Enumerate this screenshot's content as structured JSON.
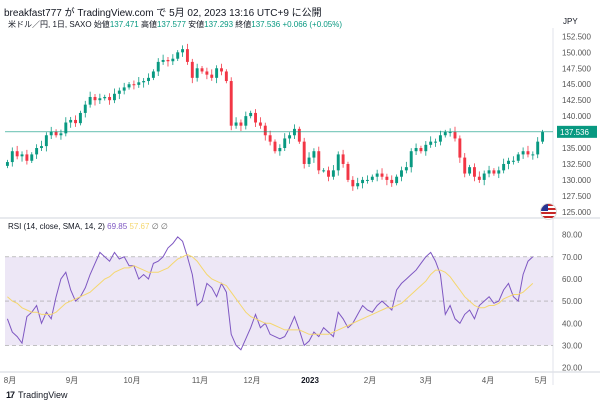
{
  "header": {
    "text": "breakfast777 が TradingView.com で 5月 02, 2023 13:16 UTC+9 に公開"
  },
  "legend": {
    "symbol": "米ドル／円, 1日, SAXO",
    "open_label": "始値",
    "open": "137.471",
    "high_label": "高値",
    "high": "137.577",
    "low_label": "安値",
    "low": "137.293",
    "close_label": "終値",
    "close": "137.536",
    "change": "+0.066 (+0.05%)"
  },
  "currency": "JPY",
  "rsi_legend": {
    "label": "RSI (14, close, SMA, 14, 2)",
    "rsi": "69.85",
    "ma": "57.67",
    "extra": "∅ ∅"
  },
  "footer": {
    "brand": "TradingView",
    "logo": "17"
  },
  "colors": {
    "up": "#089981",
    "down": "#f23645",
    "rsi": "#7e57c2",
    "rsi_ma": "#f5d76e",
    "band": "#ede7f6",
    "last_price": "#089981"
  },
  "chart_data": [
    {
      "type": "candlestick",
      "price_ticks": [
        125,
        127.5,
        130,
        132.5,
        135,
        137.5,
        140,
        142.5,
        145,
        147.5,
        150,
        152.5
      ],
      "price_labels": [
        "125.000",
        "127.500",
        "130.000",
        "132.500",
        "135.000",
        "137.500",
        "140.000",
        "142.500",
        "145.000",
        "147.500",
        "150.000",
        "152.500"
      ],
      "ylim": [
        124.5,
        153.5
      ],
      "last_price": 137.536,
      "last_price_label": "137.536",
      "x_labels": [
        "8月",
        "9月",
        "10月",
        "11月",
        "12月",
        "2023",
        "2月",
        "3月",
        "4月",
        "5月"
      ],
      "close_path": [
        132.8,
        134.5,
        133.7,
        134.0,
        133.0,
        134.0,
        135.0,
        135.3,
        137.0,
        137.6,
        137.0,
        137.3,
        139.0,
        139.4,
        138.9,
        140.5,
        141.8,
        143.0,
        142.5,
        142.8,
        143.0,
        142.5,
        143.5,
        144.0,
        144.5,
        145.0,
        144.9,
        145.3,
        145.5,
        146.0,
        147.0,
        148.5,
        148.8,
        148.6,
        149.0,
        150.0,
        150.5,
        148.5,
        146.0,
        147.5,
        147.0,
        146.5,
        146.0,
        147.5,
        147.0,
        145.5,
        138.5,
        139.0,
        138.5,
        140.0,
        140.5,
        139.0,
        138.5,
        137.0,
        136.0,
        134.5,
        135.0,
        136.5,
        137.0,
        138.0,
        136.0,
        132.5,
        133.5,
        134.5,
        131.5,
        131.5,
        130.5,
        131.5,
        134.0,
        132.5,
        130.0,
        129.0,
        129.5,
        130.0,
        130.0,
        130.5,
        131.0,
        130.5,
        130.0,
        129.5,
        130.5,
        131.5,
        132.0,
        134.5,
        135.0,
        134.5,
        135.5,
        136.0,
        136.0,
        137.0,
        137.5,
        137.5,
        136.5,
        133.5,
        131.0,
        132.0,
        130.5,
        130.0,
        131.0,
        131.5,
        131.0,
        131.5,
        132.5,
        133.0,
        133.0,
        134.0,
        134.5,
        134.0,
        134.0,
        136.0,
        137.5
      ]
    },
    {
      "type": "line",
      "name": "RSI",
      "y_ticks": [
        20,
        30,
        40,
        50,
        60,
        70,
        80
      ],
      "y_labels": [
        "20.00",
        "30.00",
        "40.00",
        "50.00",
        "60.00",
        "70.00",
        "80.00"
      ],
      "band": [
        30,
        70
      ],
      "mid": 50,
      "ylim": [
        18,
        83
      ],
      "values": [
        42,
        36,
        34,
        31,
        43,
        45,
        48,
        40,
        45,
        42,
        52,
        60,
        63,
        55,
        50,
        52,
        56,
        62,
        67,
        72,
        70,
        68,
        72,
        69,
        70,
        66,
        66,
        60,
        62,
        60,
        67,
        68,
        70,
        74,
        76,
        79,
        77,
        70,
        62,
        48,
        50,
        58,
        56,
        52,
        58,
        54,
        35,
        30,
        28,
        33,
        38,
        44,
        38,
        40,
        35,
        34,
        33,
        34,
        38,
        43,
        37,
        30,
        32,
        36,
        34,
        38,
        36,
        34,
        45,
        42,
        38,
        40,
        44,
        48,
        46,
        45,
        48,
        50,
        48,
        46,
        55,
        58,
        60,
        62,
        64,
        67,
        70,
        72,
        68,
        62,
        44,
        48,
        42,
        40,
        44,
        46,
        42,
        48,
        50,
        52,
        49,
        50,
        55,
        58,
        52,
        50,
        62,
        68,
        70
      ],
      "ma": [
        52,
        50,
        49,
        47,
        46,
        45,
        45,
        44,
        44,
        44,
        45,
        47,
        49,
        50,
        51,
        52,
        53,
        54,
        56,
        58,
        60,
        61,
        63,
        64,
        65,
        65,
        66,
        65,
        64,
        63,
        63,
        63,
        64,
        65,
        67,
        69,
        70,
        71,
        70,
        68,
        65,
        62,
        60,
        59,
        58,
        57,
        54,
        51,
        48,
        45,
        43,
        42,
        41,
        40,
        40,
        39,
        38,
        37,
        37,
        37,
        37,
        36,
        35,
        35,
        35,
        35,
        35,
        36,
        37,
        38,
        39,
        40,
        41,
        42,
        43,
        44,
        45,
        46,
        47,
        47,
        48,
        49,
        51,
        53,
        55,
        57,
        59,
        62,
        64,
        64,
        63,
        61,
        58,
        55,
        52,
        50,
        48,
        47,
        47,
        48,
        48,
        49,
        51,
        52,
        53,
        53,
        54,
        56,
        58
      ]
    }
  ]
}
